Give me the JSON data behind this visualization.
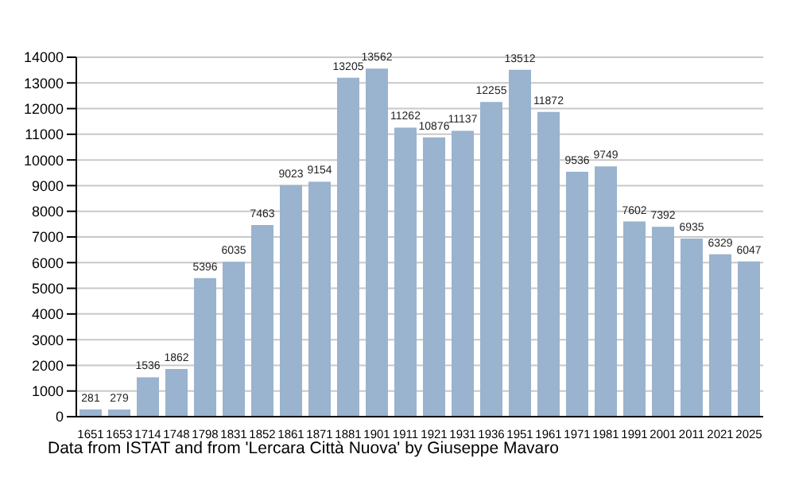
{
  "chart_data": {
    "type": "bar",
    "categories": [
      "1651",
      "1653",
      "1714",
      "1748",
      "1798",
      "1831",
      "1852",
      "1861",
      "1871",
      "1881",
      "1901",
      "1911",
      "1921",
      "1931",
      "1936",
      "1951",
      "1961",
      "1971",
      "1981",
      "1991",
      "2001",
      "2011",
      "2021",
      "2025"
    ],
    "values": [
      281,
      279,
      1536,
      1862,
      5396,
      6035,
      7463,
      9023,
      9154,
      13205,
      13562,
      11262,
      10876,
      11137,
      12255,
      13512,
      11872,
      9536,
      9749,
      7602,
      7392,
      6935,
      6329,
      6047
    ],
    "color": "#9ab3ce",
    "ylim": [
      0,
      14000
    ],
    "yticks": [
      0,
      1000,
      2000,
      3000,
      4000,
      5000,
      6000,
      7000,
      8000,
      9000,
      10000,
      11000,
      12000,
      13000,
      14000
    ],
    "grid": "y",
    "data_labels": true,
    "annotations": [
      "Data from ISTAT and from 'Lercara Città Nuova' by Giuseppe Mavaro"
    ]
  }
}
